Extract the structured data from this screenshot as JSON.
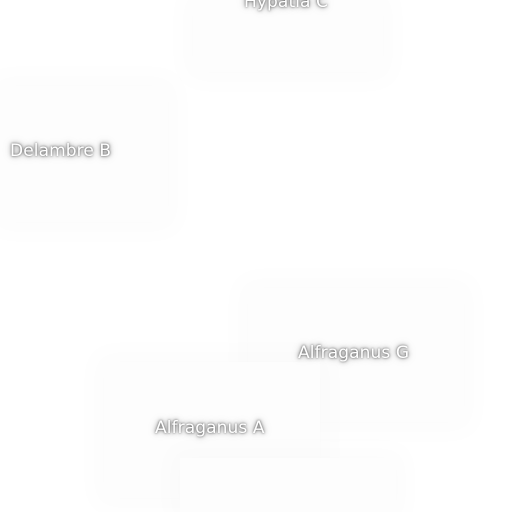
{
  "map": {
    "labels": [
      {
        "name": "Hypatia C"
      },
      {
        "name": "Delambre B"
      },
      {
        "name": "Alfraganus G"
      },
      {
        "name": "Alfraganus A"
      }
    ]
  }
}
